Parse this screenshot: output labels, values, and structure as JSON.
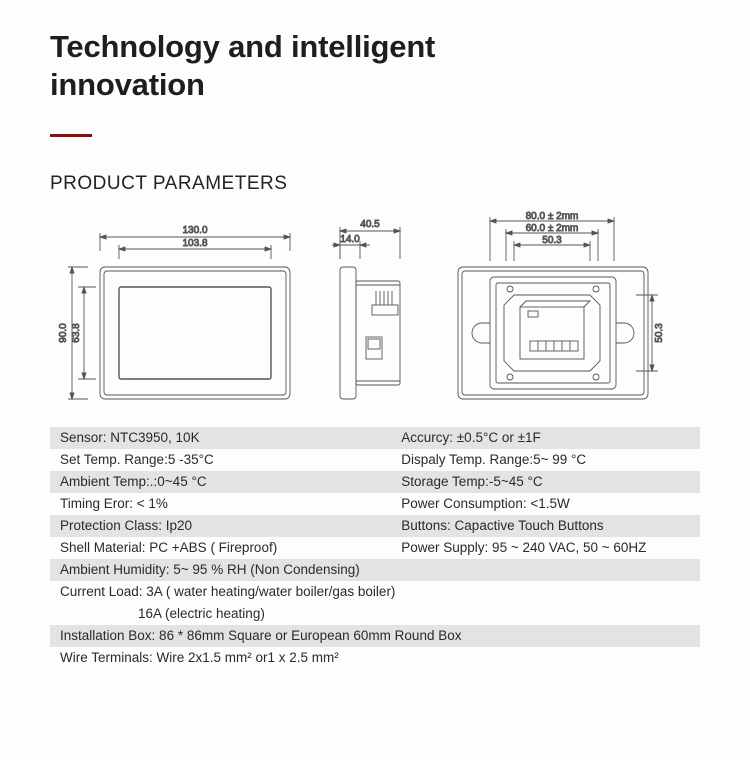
{
  "title_line1": "Technology and intelligent",
  "title_line2": "innovation",
  "section_header": "PRODUCT PARAMETERS",
  "drawings": {
    "front": {
      "width_outer": "130.0",
      "width_inner": "103.8",
      "height_outer": "90.0",
      "height_inner": "63.8"
    },
    "side": {
      "depth_top": "40.5",
      "depth_inner": "14.0"
    },
    "back": {
      "width_outer": "80.0 ± 2mm",
      "width_mid": "60.0 ± 2mm",
      "width_inner": "50.3",
      "height_inner": "50.3"
    }
  },
  "params": [
    {
      "shade": true,
      "left": "Sensor: NTC3950, 10K",
      "right": "Accurcy: ±0.5°C or ±1F"
    },
    {
      "shade": false,
      "left": "Set Temp. Range:5 -35°C",
      "right": "Dispaly Temp. Range:5~ 99 °C"
    },
    {
      "shade": true,
      "left": "Ambient Temp:.:0~45 °C",
      "right": "Storage Temp:-5~45 °C"
    },
    {
      "shade": false,
      "left": "Timing Eror: < 1%",
      "right": "Power Consumption: <1.5W"
    },
    {
      "shade": true,
      "left": "Protection Class: Ip20",
      "right": "Buttons: Capactive Touch Buttons"
    },
    {
      "shade": false,
      "left": "Shell Material: PC +ABS ( Fireproof)",
      "right": "Power Supply: 95 ~ 240 VAC, 50 ~ 60HZ"
    },
    {
      "shade": true,
      "full": "Ambient Humidity: 5~ 95 % RH (Non Condensing)"
    },
    {
      "shade": false,
      "full": "Current Load: 3A ( water heating/water boiler/gas boiler)"
    },
    {
      "shade": false,
      "full_indent": "16A (electric heating)"
    },
    {
      "shade": true,
      "full": "Installation Box: 86 * 86mm Square or European 60mm Round Box"
    },
    {
      "shade": false,
      "full": "Wire Terminals: Wire 2x1.5 mm² or1 x 2.5 mm²"
    }
  ],
  "colors": {
    "underline": "#7a1515",
    "shade_bg": "#e3e3e3",
    "stroke": "#444"
  }
}
